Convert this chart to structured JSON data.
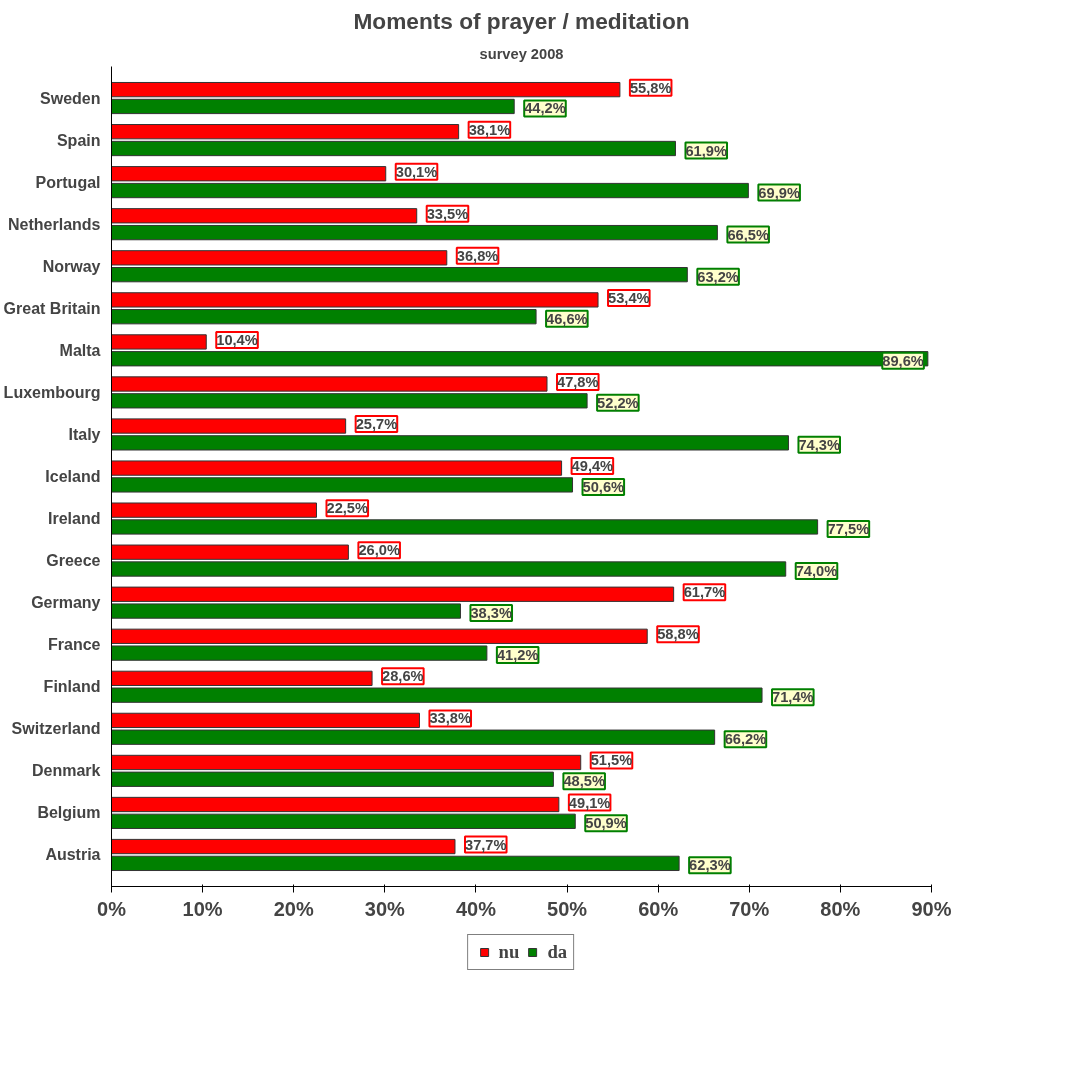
{
  "chart_data": {
    "type": "bar",
    "orientation": "horizontal",
    "title": "Moments of prayer / meditation",
    "subtitle": "survey 2008",
    "categories": [
      "Sweden",
      "Spain",
      "Portugal",
      "Netherlands",
      "Norway",
      "Great Britain",
      "Malta",
      "Luxembourg",
      "Italy",
      "Iceland",
      "Ireland",
      "Greece",
      "Germany",
      "France",
      "Finland",
      "Switzerland",
      "Denmark",
      "Belgium",
      "Austria"
    ],
    "series": [
      {
        "name": "nu",
        "color": "#ff0000",
        "values": [
          55.8,
          38.1,
          30.1,
          33.5,
          36.8,
          53.4,
          10.4,
          47.8,
          25.7,
          49.4,
          22.5,
          26.0,
          61.7,
          58.8,
          28.6,
          33.8,
          51.5,
          49.1,
          37.7
        ],
        "value_labels": [
          "55,8%",
          "38,1%",
          "30,1%",
          "33,5%",
          "36,8%",
          "53,4%",
          "10,4%",
          "47,8%",
          "25,7%",
          "49,4%",
          "22,5%",
          "26,0%",
          "61,7%",
          "58,8%",
          "28,6%",
          "33,8%",
          "51,5%",
          "49,1%",
          "37,7%"
        ]
      },
      {
        "name": "da",
        "color": "#008000",
        "values": [
          44.2,
          61.9,
          69.9,
          66.5,
          63.2,
          46.6,
          89.6,
          52.2,
          74.3,
          50.6,
          77.5,
          74.0,
          38.3,
          41.2,
          71.4,
          66.2,
          48.5,
          50.9,
          62.3
        ],
        "value_labels": [
          "44,2%",
          "61,9%",
          "69,9%",
          "66,5%",
          "63,2%",
          "46,6%",
          "89,6%",
          "52,2%",
          "74,3%",
          "50,6%",
          "77,5%",
          "74,0%",
          "38,3%",
          "41,2%",
          "71,4%",
          "66,2%",
          "48,5%",
          "50,9%",
          "62,3%"
        ]
      }
    ],
    "xlim": [
      0,
      90
    ],
    "xticks": [
      {
        "value": 0,
        "label": "0%"
      },
      {
        "value": 10,
        "label": "10%"
      },
      {
        "value": 20,
        "label": "20%"
      },
      {
        "value": 30,
        "label": "30%"
      },
      {
        "value": 40,
        "label": "40%"
      },
      {
        "value": 50,
        "label": "50%"
      },
      {
        "value": 60,
        "label": "60%"
      },
      {
        "value": 70,
        "label": "70%"
      },
      {
        "value": 80,
        "label": "80%"
      },
      {
        "value": 90,
        "label": "90%"
      }
    ],
    "legend": "bottom",
    "grid": false
  }
}
